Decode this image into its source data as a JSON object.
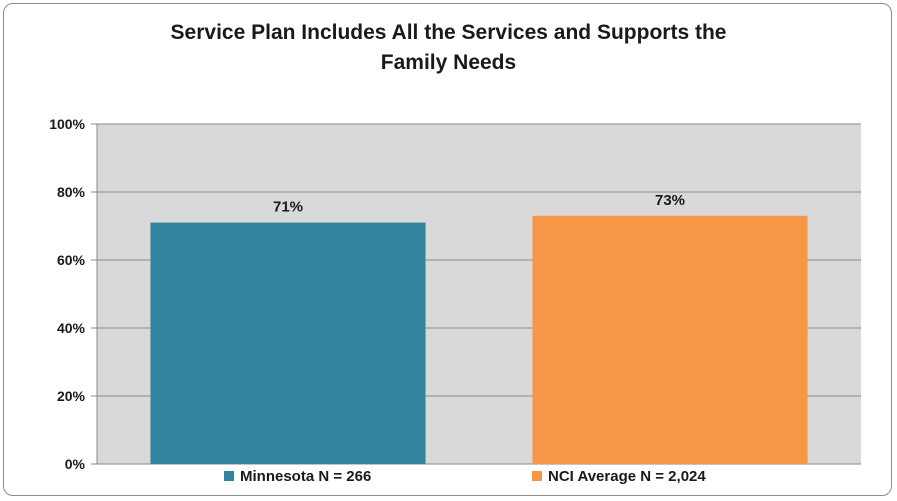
{
  "chart_data": {
    "type": "bar",
    "title_lines": [
      "Service Plan Includes All the Services and Supports the",
      "Family Needs"
    ],
    "categories": [
      "Minnesota N = 266",
      "NCI Average N = 2,024"
    ],
    "series": [
      {
        "name": "Minnesota N = 266",
        "value": 71,
        "label": "71%",
        "color": "#31849b"
      },
      {
        "name": "NCI Average N = 2,024",
        "value": 73,
        "label": "73%",
        "color": "#f79646"
      }
    ],
    "ylim": [
      0,
      100
    ],
    "yticks": [
      {
        "value": 0,
        "label": "0%"
      },
      {
        "value": 20,
        "label": "20%"
      },
      {
        "value": 40,
        "label": "40%"
      },
      {
        "value": 60,
        "label": "60%"
      },
      {
        "value": 80,
        "label": "80%"
      },
      {
        "value": 100,
        "label": "100%"
      }
    ],
    "grid": true,
    "plot_background": "#d9d9d9",
    "legend_position": "bottom",
    "xlabel": "",
    "ylabel": ""
  }
}
